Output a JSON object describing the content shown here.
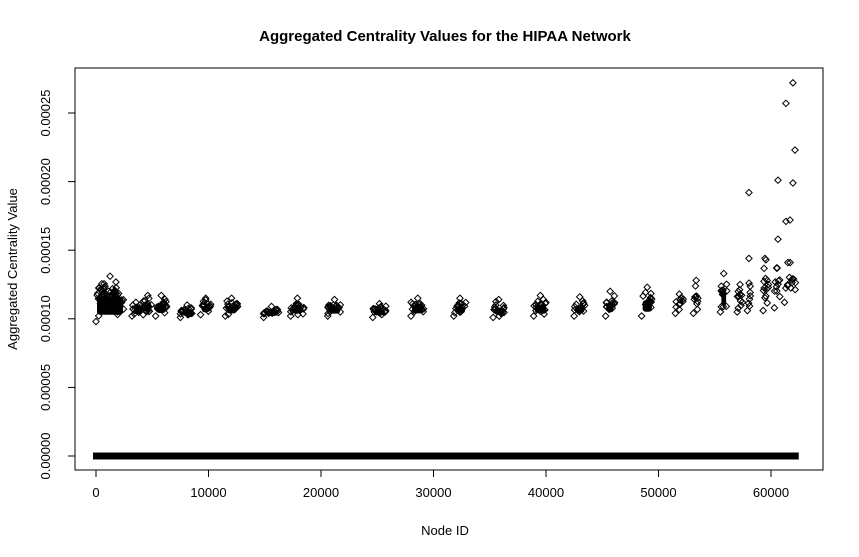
{
  "chart_data": {
    "type": "scatter",
    "title": "Aggregated Centrality Values for the HIPAA Network",
    "xlabel": "Node ID",
    "ylabel": "Aggregated Centrality Value",
    "xlim": [
      0,
      62500
    ],
    "ylim": [
      0,
      0.00027
    ],
    "x_ticks": [
      0,
      10000,
      20000,
      30000,
      40000,
      50000,
      60000
    ],
    "x_tick_labels": [
      "0",
      "10000",
      "20000",
      "30000",
      "40000",
      "50000",
      "60000"
    ],
    "y_ticks": [
      0,
      5e-05,
      0.0001,
      0.00015,
      0.0002,
      0.00025
    ],
    "y_tick_labels": [
      "0.00000",
      "0.00005",
      "0.00010",
      "0.00015",
      "0.00020",
      "0.00025"
    ],
    "grid": false,
    "marker": "open-diamond",
    "zero_baseline": {
      "x_from": 0,
      "x_to": 62200,
      "y": 0
    },
    "clusters": [
      {
        "x_from": 0,
        "x_to": 2500,
        "y_min": 9.8e-05,
        "y_max": 0.000131,
        "n": 70
      },
      {
        "x_from": 3200,
        "x_to": 3900,
        "y_min": 0.000102,
        "y_max": 0.000112,
        "n": 15
      },
      {
        "x_from": 4200,
        "x_to": 5000,
        "y_min": 0.000103,
        "y_max": 0.000117,
        "n": 15
      },
      {
        "x_from": 5300,
        "x_to": 6300,
        "y_min": 0.000102,
        "y_max": 0.000117,
        "n": 18
      },
      {
        "x_from": 7500,
        "x_to": 8700,
        "y_min": 0.000101,
        "y_max": 0.00011,
        "n": 18
      },
      {
        "x_from": 9300,
        "x_to": 10200,
        "y_min": 0.000103,
        "y_max": 0.000115,
        "n": 15
      },
      {
        "x_from": 11500,
        "x_to": 12600,
        "y_min": 0.000102,
        "y_max": 0.000115,
        "n": 18
      },
      {
        "x_from": 14900,
        "x_to": 16300,
        "y_min": 0.000101,
        "y_max": 0.000109,
        "n": 20
      },
      {
        "x_from": 17300,
        "x_to": 18500,
        "y_min": 0.000102,
        "y_max": 0.000115,
        "n": 18
      },
      {
        "x_from": 20600,
        "x_to": 21800,
        "y_min": 0.000102,
        "y_max": 0.000114,
        "n": 18
      },
      {
        "x_from": 24600,
        "x_to": 25800,
        "y_min": 0.000101,
        "y_max": 0.000111,
        "n": 18
      },
      {
        "x_from": 28000,
        "x_to": 29200,
        "y_min": 0.000102,
        "y_max": 0.000115,
        "n": 18
      },
      {
        "x_from": 31800,
        "x_to": 32900,
        "y_min": 0.000102,
        "y_max": 0.000115,
        "n": 16
      },
      {
        "x_from": 35300,
        "x_to": 36300,
        "y_min": 0.000101,
        "y_max": 0.000114,
        "n": 16
      },
      {
        "x_from": 38900,
        "x_to": 40100,
        "y_min": 0.000102,
        "y_max": 0.000117,
        "n": 18
      },
      {
        "x_from": 42500,
        "x_to": 43500,
        "y_min": 0.000102,
        "y_max": 0.000116,
        "n": 15
      },
      {
        "x_from": 45300,
        "x_to": 46100,
        "y_min": 0.000102,
        "y_max": 0.00012,
        "n": 14
      },
      {
        "x_from": 48500,
        "x_to": 49500,
        "y_min": 0.000102,
        "y_max": 0.000123,
        "n": 15
      },
      {
        "x_from": 51500,
        "x_to": 52200,
        "y_min": 0.000104,
        "y_max": 0.000118,
        "n": 10
      },
      {
        "x_from": 53100,
        "x_to": 53600,
        "y_min": 0.000104,
        "y_max": 0.000128,
        "n": 10
      },
      {
        "x_from": 55500,
        "x_to": 56100,
        "y_min": 0.000105,
        "y_max": 0.000133,
        "n": 14
      },
      {
        "x_from": 57000,
        "x_to": 57500,
        "y_min": 0.000105,
        "y_max": 0.000125,
        "n": 10
      },
      {
        "x_from": 57900,
        "x_to": 58200,
        "y_min": 0.000106,
        "y_max": 0.000126,
        "n": 6
      },
      {
        "x_from": 59300,
        "x_to": 59800,
        "y_min": 0.000106,
        "y_max": 0.000143,
        "n": 12
      },
      {
        "x_from": 60300,
        "x_to": 60800,
        "y_min": 0.000108,
        "y_max": 0.000137,
        "n": 8
      },
      {
        "x_from": 61200,
        "x_to": 62200,
        "y_min": 0.000112,
        "y_max": 0.000141,
        "n": 10
      }
    ],
    "outliers": [
      {
        "x": 61950,
        "y": 0.000272
      },
      {
        "x": 61330,
        "y": 0.000257
      },
      {
        "x": 62130,
        "y": 0.000223
      },
      {
        "x": 60620,
        "y": 0.000201
      },
      {
        "x": 61950,
        "y": 0.000199
      },
      {
        "x": 58040,
        "y": 0.000192
      },
      {
        "x": 61690,
        "y": 0.000172
      },
      {
        "x": 61330,
        "y": 0.000171
      },
      {
        "x": 60620,
        "y": 0.000158
      },
      {
        "x": 58040,
        "y": 0.000144
      },
      {
        "x": 59460,
        "y": 0.000144
      },
      {
        "x": 60500,
        "y": 0.000137
      },
      {
        "x": 61500,
        "y": 0.000141
      },
      {
        "x": 62000,
        "y": 0.000129
      }
    ]
  }
}
